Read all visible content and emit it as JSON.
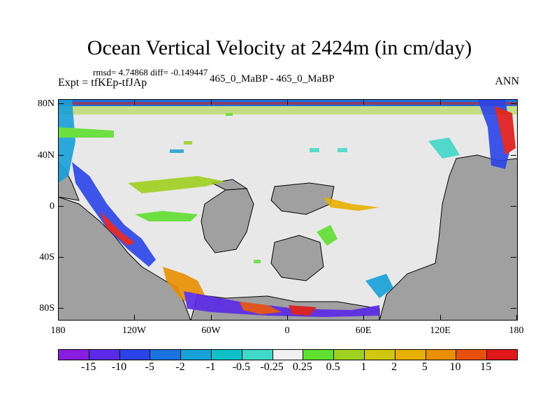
{
  "title": "Ocean Vertical Velocity at 2424m (in cm/day)",
  "stats": "rmsd= 4.74868 diff= -0.149447",
  "expt": "Expt = tfKEp-tfJAp",
  "case": "465_0_MaBP - 465_0_MaBP",
  "season": "ANN",
  "map": {
    "y_ticks": [
      "80N",
      "40N",
      "0",
      "40S",
      "80S"
    ],
    "x_ticks": [
      "180",
      "120W",
      "60W",
      "0",
      "60E",
      "120E",
      "180"
    ],
    "land_color": "#a0a0a0",
    "ocean_color": "#e8e8e8"
  },
  "colorbar": {
    "colors": [
      "#8a1ee0",
      "#5a2ae8",
      "#2a44e8",
      "#1a74e0",
      "#18a0d8",
      "#10c0c8",
      "#40d8c8",
      "#f0f0f0",
      "#60e030",
      "#a0d020",
      "#d0c810",
      "#e8b000",
      "#e89000",
      "#e85010",
      "#e01818"
    ],
    "labels": [
      "-15",
      "-10",
      "-5",
      "-2",
      "-1",
      "-0.5",
      "-0.25",
      "0.25",
      "0.5",
      "1",
      "2",
      "5",
      "10",
      "15"
    ]
  }
}
